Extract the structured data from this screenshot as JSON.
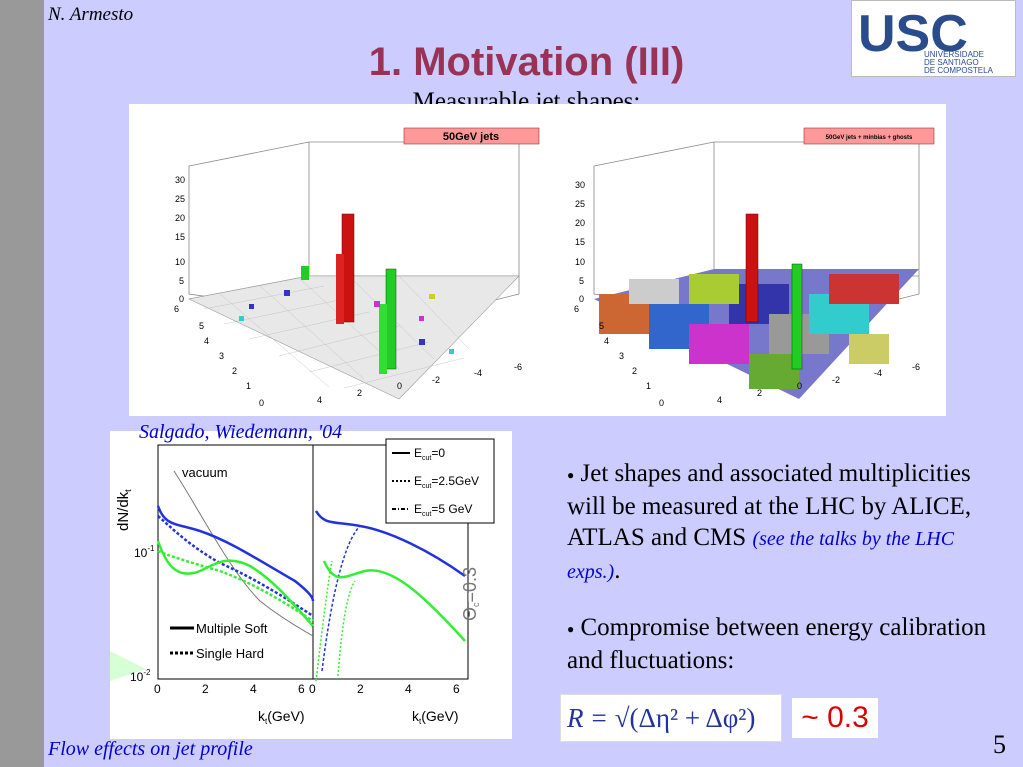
{
  "author": "N. Armesto",
  "logo": {
    "text": "USC",
    "sub": [
      "UNIVERSIDADE",
      "DE SANTIAGO",
      "DE COMPOSTELA"
    ],
    "color": "#2b4c8c"
  },
  "title": "1. Motivation (III)",
  "subtitle": "Measurable jet shapes:",
  "top_panels": {
    "left_label": "50GeV jets",
    "right_label": "50GeV jets + minbias + ghosts",
    "z_ticks": [
      "0",
      "5",
      "10",
      "15",
      "20",
      "25",
      "30"
    ],
    "y_ticks": [
      "6",
      "5",
      "4",
      "3",
      "2",
      "1",
      "0"
    ],
    "x_ticks": [
      "4",
      "2",
      "0",
      "-2",
      "-4",
      "-6"
    ]
  },
  "caption": "Salgado, Wiedemann, '04",
  "lower_plot": {
    "ylabel": "dN/dk",
    "ylabel_sub": "t",
    "xlabel": "k",
    "xlabel_sub": "t",
    "xlabel_unit": "(GeV)",
    "y_tick_1": "10",
    "y_tick_1_exp": "-1",
    "y_tick_2": "10",
    "y_tick_2_exp": "-2",
    "x_ticks_left": [
      "0",
      "2",
      "4",
      "6"
    ],
    "x_ticks_right": [
      "0",
      "2",
      "4",
      "6"
    ],
    "vacuum_label": "vacuum",
    "legend": [
      {
        "prefix": "E",
        "sub": "cut",
        "value": "=0"
      },
      {
        "prefix": "E",
        "sub": "cut",
        "value": "=2.5GeV"
      },
      {
        "prefix": "E",
        "sub": "cut",
        "value": "=5 GeV"
      }
    ],
    "style_legend": [
      "Multiple Soft",
      "Single Hard"
    ],
    "theta_label": "Θ",
    "theta_sub": "c",
    "theta_value": "=0.3"
  },
  "bullets": [
    {
      "text": "Jet shapes and associated multiplicities will be measured at the LHC by ALICE, ATLAS and CMS",
      "ref": "(see the talks by the LHC exps.)",
      "end": "."
    },
    {
      "text": "Compromise between energy calibration and fluctuations:",
      "ref": "",
      "end": ""
    }
  ],
  "formula": {
    "lhs": "R",
    "eq": "=",
    "rhs": "√(Δη² + Δφ²)"
  },
  "approx": "~ 0.3",
  "footer": "Flow effects on jet profile",
  "page_number": "5"
}
